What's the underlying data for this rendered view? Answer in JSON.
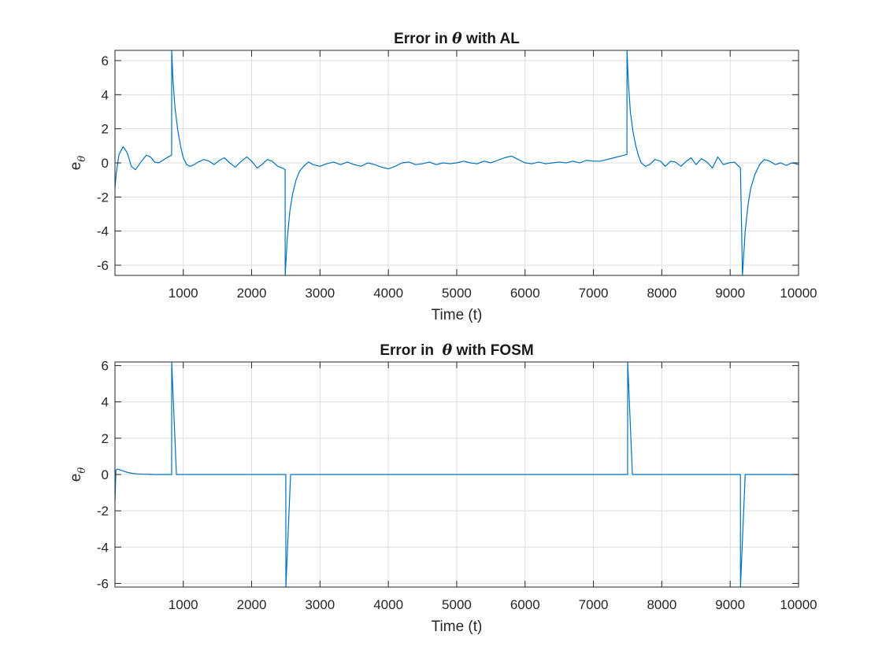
{
  "chart_data": [
    {
      "type": "line",
      "title_prefix": "Error in ",
      "title_symbol": "θ",
      "title_suffix": " with AL",
      "xlabel": "Time (t)",
      "ylabel_main": "e",
      "ylabel_sub": "θ",
      "xlim": [
        1,
        10000
      ],
      "ylim": [
        -6.6,
        6.6
      ],
      "xticks": [
        1000,
        2000,
        3000,
        4000,
        5000,
        6000,
        7000,
        8000,
        9000,
        10000
      ],
      "yticks": [
        -6,
        -4,
        -2,
        0,
        2,
        4,
        6
      ],
      "grid": true,
      "series": [
        {
          "color": "#0072BD",
          "x": [
            1,
            20,
            60,
            120,
            180,
            240,
            300,
            380,
            460,
            520,
            580,
            640,
            700,
            780,
            830,
            831,
            850,
            880,
            920,
            960,
            1000,
            1050,
            1100,
            1160,
            1220,
            1300,
            1380,
            1450,
            1530,
            1600,
            1680,
            1760,
            1850,
            1930,
            2000,
            2080,
            2150,
            2230,
            2300,
            2380,
            2450,
            2490,
            2491,
            2520,
            2560,
            2600,
            2650,
            2700,
            2760,
            2830,
            2900,
            3000,
            3100,
            3200,
            3300,
            3400,
            3500,
            3600,
            3700,
            3800,
            3900,
            4000,
            4100,
            4200,
            4300,
            4400,
            4500,
            4600,
            4700,
            4800,
            4900,
            5000,
            5100,
            5200,
            5300,
            5400,
            5500,
            5600,
            5700,
            5800,
            5900,
            6000,
            6100,
            6200,
            6300,
            6400,
            6500,
            6600,
            6700,
            6800,
            6900,
            7000,
            7100,
            7200,
            7300,
            7400,
            7490,
            7491,
            7510,
            7540,
            7580,
            7620,
            7660,
            7700,
            7760,
            7820,
            7900,
            7980,
            8050,
            8130,
            8200,
            8280,
            8360,
            8430,
            8500,
            8580,
            8660,
            8740,
            8820,
            8900,
            8980,
            9060,
            9140,
            9150,
            9151,
            9180,
            9220,
            9260,
            9300,
            9360,
            9430,
            9500,
            9580,
            9660,
            9740,
            9820,
            9900,
            9960,
            10000
          ],
          "y": [
            -1.5,
            -0.6,
            0.5,
            0.95,
            0.6,
            -0.2,
            -0.4,
            0.05,
            0.45,
            0.35,
            0.05,
            0.0,
            0.15,
            0.35,
            0.45,
            6.6,
            4.8,
            3.2,
            1.9,
            1.0,
            0.3,
            -0.1,
            -0.2,
            -0.1,
            0.05,
            0.2,
            0.1,
            -0.1,
            0.15,
            0.3,
            0.0,
            -0.25,
            0.1,
            0.35,
            0.1,
            -0.3,
            -0.1,
            0.2,
            0.1,
            -0.2,
            -0.3,
            -0.4,
            -6.6,
            -4.5,
            -2.8,
            -1.8,
            -1.0,
            -0.5,
            -0.2,
            0.05,
            -0.1,
            -0.2,
            -0.05,
            0.05,
            -0.1,
            0.05,
            -0.1,
            -0.2,
            0.0,
            -0.1,
            -0.25,
            -0.35,
            -0.2,
            0.0,
            0.05,
            -0.1,
            -0.05,
            0.05,
            -0.1,
            0.0,
            -0.05,
            0.0,
            0.1,
            0.0,
            -0.05,
            0.1,
            0.0,
            0.15,
            0.3,
            0.4,
            0.2,
            0.0,
            -0.05,
            0.05,
            -0.05,
            0.0,
            0.05,
            0.0,
            0.1,
            0.0,
            0.15,
            0.1,
            0.1,
            0.2,
            0.3,
            0.4,
            0.5,
            6.6,
            4.8,
            3.0,
            1.8,
            1.0,
            0.4,
            0.0,
            -0.2,
            -0.1,
            0.2,
            0.1,
            -0.2,
            0.1,
            0.05,
            -0.2,
            0.1,
            0.3,
            -0.1,
            0.25,
            0.05,
            -0.3,
            0.35,
            -0.1,
            0.0,
            0.05,
            -0.25,
            -0.3,
            -0.4,
            -6.6,
            -4.0,
            -2.5,
            -1.5,
            -0.7,
            -0.1,
            0.2,
            0.1,
            -0.1,
            0.0,
            -0.15,
            0.0,
            -0.05,
            -0.1
          ]
        }
      ]
    },
    {
      "type": "line",
      "title_prefix": "Error in  ",
      "title_symbol": "θ",
      "title_suffix": " with FOSM",
      "xlabel": "Time (t)",
      "ylabel_main": "e",
      "ylabel_sub": "θ",
      "xlim": [
        1,
        10000
      ],
      "ylim": [
        -6.2,
        6.2
      ],
      "xticks": [
        1000,
        2000,
        3000,
        4000,
        5000,
        6000,
        7000,
        8000,
        9000,
        10000
      ],
      "yticks": [
        -6,
        -4,
        -2,
        0,
        2,
        4,
        6
      ],
      "grid": true,
      "series": [
        {
          "color": "#0072BD",
          "x": [
            1,
            15,
            40,
            100,
            180,
            260,
            340,
            420,
            500,
            600,
            700,
            830,
            831,
            900,
            901,
            2500,
            2501,
            2570,
            2571,
            7500,
            7501,
            7570,
            7571,
            9150,
            9151,
            9220,
            9221,
            10000
          ],
          "y": [
            -1.5,
            0.25,
            0.3,
            0.22,
            0.12,
            0.06,
            0.03,
            0.02,
            0.01,
            0.0,
            0.0,
            0.0,
            6.2,
            0.0,
            0.0,
            0.0,
            -6.2,
            0.0,
            0.0,
            0.0,
            6.2,
            0.0,
            0.0,
            0.0,
            -6.2,
            0.0,
            0.0,
            0.0
          ]
        }
      ]
    }
  ]
}
